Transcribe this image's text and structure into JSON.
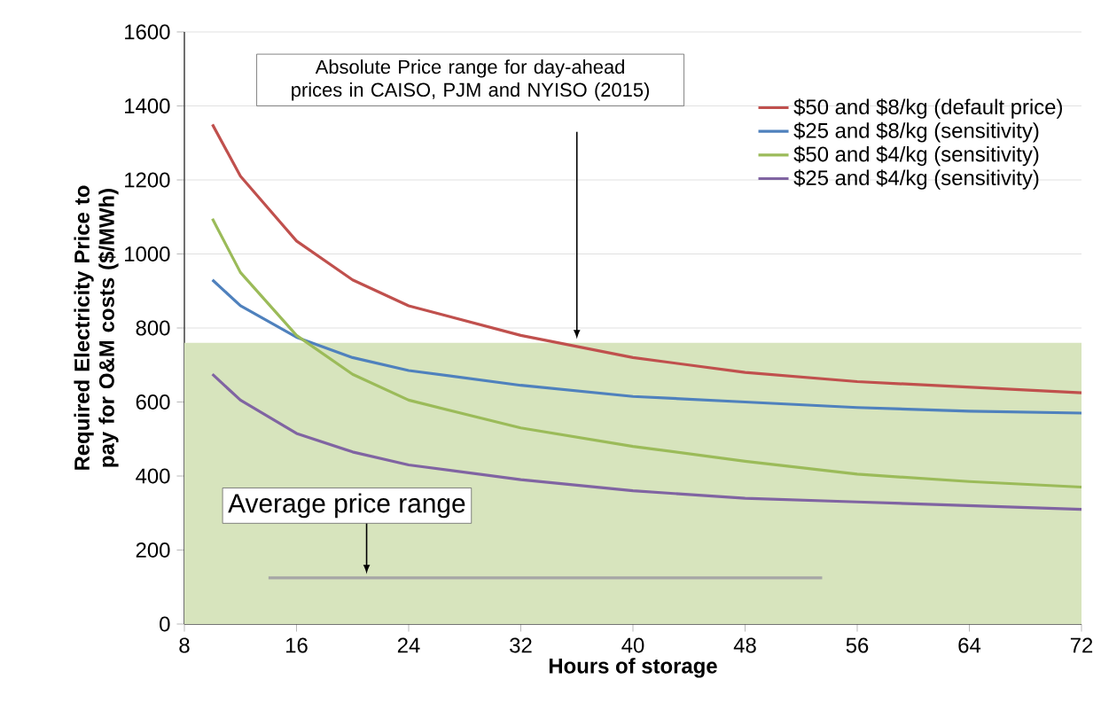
{
  "chart_data": {
    "type": "line",
    "xlabel": "Hours of storage",
    "ylabel": "Required Electricity Price to pay for O&M costs ($/MWh)",
    "xlim": [
      8,
      72
    ],
    "xticks": [
      8,
      16,
      24,
      32,
      40,
      48,
      56,
      64,
      72
    ],
    "ylim": [
      0,
      1600
    ],
    "yticks": [
      0,
      200,
      400,
      600,
      800,
      1000,
      1200,
      1400,
      1600
    ],
    "grid": "y",
    "legend": "top right",
    "bands": [
      {
        "axis": "y",
        "from": 0,
        "to": 760,
        "color": "#d7e4bd"
      }
    ],
    "annotations": [
      "Absolute Price range for day-ahead prices in CAISO, PJM and NYISO (2015)",
      {
        "text": "Average price range",
        "x": 21,
        "y": 125
      }
    ],
    "series": [
      {
        "name": "$50 and $8/kg (default price)",
        "color": "#c0504d",
        "x": [
          10,
          12,
          16,
          20,
          24,
          32,
          40,
          48,
          56,
          64,
          72
        ],
        "values": [
          1350,
          1210,
          1035,
          930,
          860,
          780,
          720,
          680,
          655,
          640,
          625
        ]
      },
      {
        "name": "$25 and $8/kg (sensitivity)",
        "color": "#4f81bd",
        "x": [
          10,
          12,
          16,
          20,
          24,
          32,
          40,
          48,
          56,
          64,
          72
        ],
        "values": [
          930,
          860,
          775,
          720,
          685,
          645,
          615,
          600,
          585,
          575,
          570
        ]
      },
      {
        "name": "$50 and $4/kg (sensitivity)",
        "color": "#9bbb59",
        "x": [
          10,
          12,
          16,
          20,
          24,
          32,
          40,
          48,
          56,
          64,
          72
        ],
        "values": [
          1095,
          950,
          780,
          675,
          605,
          530,
          480,
          440,
          405,
          385,
          370
        ]
      },
      {
        "name": "$25 and $4/kg (sensitivity)",
        "color": "#8064a2",
        "x": [
          10,
          12,
          16,
          20,
          24,
          32,
          40,
          48,
          56,
          64,
          72
        ],
        "values": [
          675,
          605,
          515,
          465,
          430,
          390,
          360,
          340,
          330,
          320,
          310
        ]
      },
      {
        "color": "#a6a6a6",
        "x": [
          14,
          53.5
        ],
        "values": [
          125,
          125
        ]
      }
    ]
  }
}
